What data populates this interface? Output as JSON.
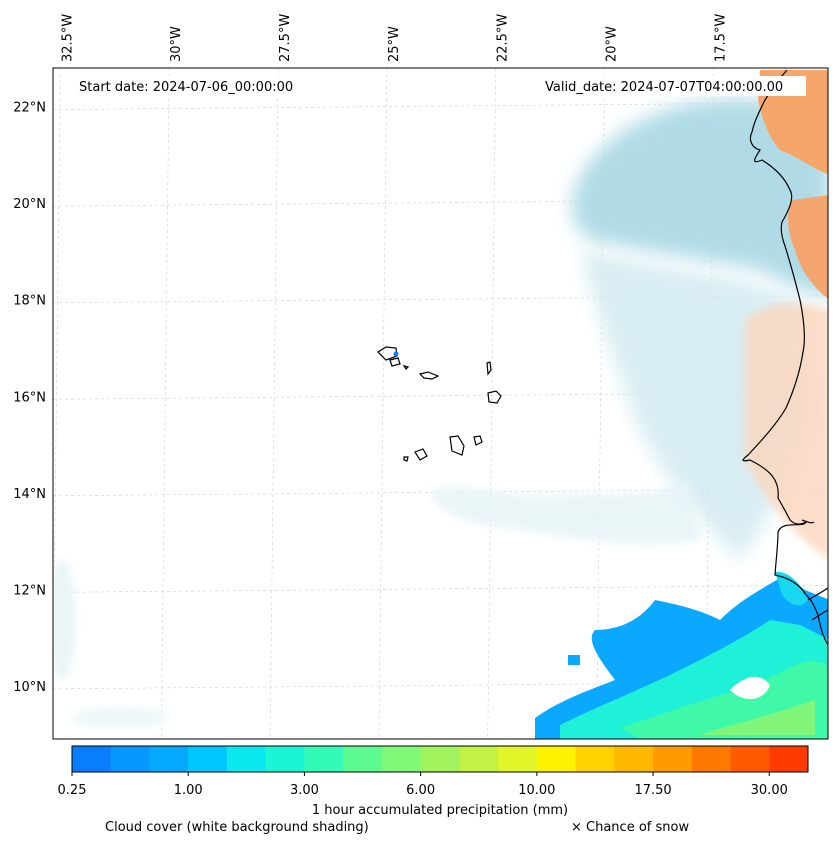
{
  "map": {
    "start_label": "Start date: 2024-07-06_00:00:00",
    "valid_label": "Valid_date: 2024-07-07T04:00:00.00",
    "lon_labels": [
      "32.5°W",
      "30°W",
      "27.5°W",
      "25°W",
      "22.5°W",
      "20°W",
      "17.5°W"
    ],
    "lon_values": [
      -32.5,
      -30,
      -27.5,
      -25,
      -22.5,
      -20,
      -17.5
    ],
    "lat_labels": [
      "22°N",
      "20°N",
      "18°N",
      "16°N",
      "14°N",
      "12°N",
      "10°N"
    ],
    "lat_values": [
      22,
      20,
      18,
      16,
      14,
      12,
      10
    ],
    "extent": {
      "lon_min": -32.6,
      "lon_max": -14.8,
      "lat_min": 8.9,
      "lat_max": 22.8
    }
  },
  "colorbar": {
    "title": "1 hour accumulated precipitation (mm)",
    "tick_labels": [
      "0.25",
      "1.00",
      "3.00",
      "6.00",
      "10.00",
      "17.50",
      "30.00"
    ],
    "colors": [
      "#0a7dff",
      "#0896ff",
      "#05aaff",
      "#00c8ff",
      "#0ce8ef",
      "#1af5d5",
      "#33fab6",
      "#5dfb8f",
      "#7ff777",
      "#a2f45e",
      "#c2f243",
      "#e1f629",
      "#fff200",
      "#ffd200",
      "#ffb700",
      "#ff9a00",
      "#ff7800",
      "#ff5a00",
      "#ff3c00"
    ]
  },
  "footer": {
    "cloud_label": "Cloud cover (white background shading)",
    "snow_label": "× Chance of snow"
  }
}
